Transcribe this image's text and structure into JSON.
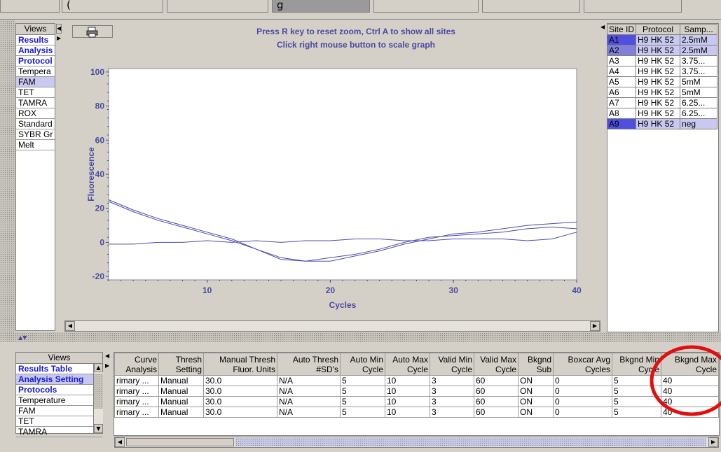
{
  "top_tabs": [
    {
      "label": "",
      "active": false
    },
    {
      "label": "(",
      "active": false
    },
    {
      "label": "",
      "active": false
    },
    {
      "label": "g",
      "active": true
    },
    {
      "label": "",
      "active": false
    },
    {
      "label": "",
      "active": false
    },
    {
      "label": "",
      "active": false
    }
  ],
  "upper_views": {
    "header": "Views",
    "items": [
      {
        "label": "Results",
        "link": true
      },
      {
        "label": "Analysis",
        "link": true
      },
      {
        "label": "Protocol",
        "link": true
      },
      {
        "label": "Tempera",
        "link": false
      },
      {
        "label": "FAM",
        "link": false,
        "selected": true
      },
      {
        "label": "TET",
        "link": false
      },
      {
        "label": "TAMRA",
        "link": false
      },
      {
        "label": "ROX",
        "link": false
      },
      {
        "label": "Standard",
        "link": false
      },
      {
        "label": "SYBR Gr",
        "link": false
      },
      {
        "label": "Melt",
        "link": false
      }
    ]
  },
  "chart_hints": {
    "line1": "Press R key to reset zoom, Ctrl A to show all sites",
    "line2": "Click right mouse button to scale graph"
  },
  "chart_data": {
    "type": "line",
    "xlabel": "Cycles",
    "ylabel": "Fluorescence",
    "xlim": [
      2,
      40
    ],
    "ylim": [
      -22,
      102
    ],
    "xticks": [
      10,
      20,
      30,
      40
    ],
    "yticks": [
      -20,
      0,
      20,
      40,
      60,
      80,
      100
    ],
    "grid": false,
    "line_color": "#4a4ab0",
    "series": [
      {
        "x": [
          2,
          4,
          6,
          8,
          10,
          12,
          14,
          16,
          18,
          20,
          22,
          24,
          26,
          28,
          30,
          32,
          34,
          36,
          38,
          40
        ],
        "y": [
          25,
          19,
          14,
          10,
          6,
          2,
          -4,
          -9,
          -11,
          -11,
          -8,
          -5,
          -1,
          2,
          5,
          6,
          8,
          10,
          11,
          12
        ]
      },
      {
        "x": [
          2,
          4,
          6,
          8,
          10,
          12,
          14,
          16,
          18,
          20,
          22,
          24,
          26,
          28,
          30,
          32,
          34,
          36,
          38,
          40
        ],
        "y": [
          24,
          18,
          13,
          9,
          5,
          1,
          -4,
          -10,
          -11,
          -9,
          -7,
          -4,
          0,
          3,
          4,
          5,
          6,
          8,
          9,
          8
        ]
      },
      {
        "x": [
          2,
          4,
          6,
          8,
          10,
          12,
          14,
          16,
          18,
          20,
          22,
          24,
          26,
          28,
          30,
          32,
          34,
          36,
          38,
          40
        ],
        "y": [
          -1,
          -1,
          0,
          0,
          1,
          0,
          1,
          0,
          1,
          1,
          2,
          2,
          1,
          1,
          2,
          2,
          2,
          1,
          2,
          6
        ]
      }
    ]
  },
  "site_table": {
    "headers": [
      "Site ID",
      "Protocol",
      "Samp..."
    ],
    "rows": [
      {
        "site": "A1",
        "protocol": "H9 HK 52",
        "sample": "2.5mM",
        "hl": "strong"
      },
      {
        "site": "A2",
        "protocol": "H9 HK 52",
        "sample": "2.5mM",
        "hl": "mid"
      },
      {
        "site": "A3",
        "protocol": "H9 HK 52",
        "sample": "3.75...",
        "hl": ""
      },
      {
        "site": "A4",
        "protocol": "H9 HK 52",
        "sample": "3.75...",
        "hl": ""
      },
      {
        "site": "A5",
        "protocol": "H9 HK 52",
        "sample": "5mM",
        "hl": ""
      },
      {
        "site": "A6",
        "protocol": "H9 HK 52",
        "sample": "5mM",
        "hl": ""
      },
      {
        "site": "A7",
        "protocol": "H9 HK 52",
        "sample": "6.25...",
        "hl": ""
      },
      {
        "site": "A8",
        "protocol": "H9 HK 52",
        "sample": "6.25...",
        "hl": ""
      },
      {
        "site": "A9",
        "protocol": "H9 HK 52",
        "sample": "neg",
        "hl": "strong"
      }
    ]
  },
  "lower_views": {
    "header": "Views",
    "items": [
      {
        "label": "Results Table",
        "link": true
      },
      {
        "label": "Analysis Setting",
        "link": true,
        "selected": true
      },
      {
        "label": "Protocols",
        "link": true
      },
      {
        "label": "Temperature",
        "link": false
      },
      {
        "label": "FAM",
        "link": false
      },
      {
        "label": "TET",
        "link": false
      },
      {
        "label": "TAMRA",
        "link": false
      }
    ]
  },
  "analysis_table": {
    "headers": [
      "Curve Analysis",
      "Thresh Setting",
      "Manual Thresh Fluor. Units",
      "Auto Thresh #SD's",
      "Auto Min Cycle",
      "Auto Max Cycle",
      "Valid Min Cycle",
      "Valid Max Cycle",
      "Bkgnd Sub",
      "Boxcar Avg Cycles",
      "Bkgnd Min Cycle",
      "Bkgnd Max Cycle"
    ],
    "rows": [
      [
        "rimary ...",
        "Manual",
        "30.0",
        "N/A",
        "5",
        "10",
        "3",
        "60",
        "ON",
        "0",
        "5",
        "40"
      ],
      [
        "rimary ...",
        "Manual",
        "30.0",
        "N/A",
        "5",
        "10",
        "3",
        "60",
        "ON",
        "0",
        "5",
        "40"
      ],
      [
        "rimary ...",
        "Manual",
        "30.0",
        "N/A",
        "5",
        "10",
        "3",
        "60",
        "ON",
        "0",
        "5",
        "40"
      ],
      [
        "rimary ...",
        "Manual",
        "30.0",
        "N/A",
        "5",
        "10",
        "3",
        "60",
        "ON",
        "0",
        "5",
        "40"
      ]
    ]
  },
  "colors": {
    "link_blue": "#1a1ad0",
    "highlight_strong": "#5050e0",
    "highlight_mid": "#8080d8",
    "highlight_light": "#c8c8f0",
    "annotation_red": "#e01010"
  },
  "icons": {
    "print": "printer-icon"
  }
}
